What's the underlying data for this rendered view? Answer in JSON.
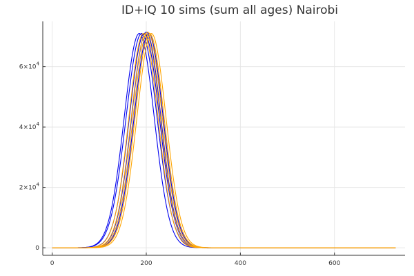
{
  "chart_data": {
    "type": "line",
    "title": "ID+IQ 10 sims (sum all ages) Nairobi",
    "xlabel": "",
    "ylabel": "",
    "xlim": [
      -20,
      750
    ],
    "ylim": [
      -2500,
      75000
    ],
    "grid": true,
    "legend": "none",
    "x_ticks": [
      {
        "value": 0,
        "label": "0"
      },
      {
        "value": 200,
        "label": "200"
      },
      {
        "value": 400,
        "label": "400"
      },
      {
        "value": 600,
        "label": "600"
      }
    ],
    "y_ticks": [
      {
        "value": 0,
        "base": "0",
        "exp": ""
      },
      {
        "value": 20000,
        "base": "2×10",
        "exp": "4"
      },
      {
        "value": 40000,
        "base": "4×10",
        "exp": "4"
      },
      {
        "value": 60000,
        "base": "6×10",
        "exp": "4"
      }
    ],
    "x_range": [
      0,
      730
    ],
    "series": [
      {
        "color": "#0000ee",
        "peak_x": 185,
        "peak_y": 71000,
        "width": 32
      },
      {
        "color": "#0000ee",
        "peak_x": 190,
        "peak_y": 71000,
        "width": 33
      },
      {
        "color": "#0000ee",
        "peak_x": 196,
        "peak_y": 71000,
        "width": 32
      },
      {
        "color": "#0000ee",
        "peak_x": 200,
        "peak_y": 71500,
        "width": 31
      },
      {
        "color": "#0000ee",
        "peak_x": 205,
        "peak_y": 71000,
        "width": 31
      },
      {
        "color": "#ffa500",
        "peak_x": 194,
        "peak_y": 71000,
        "width": 31
      },
      {
        "color": "#ffa500",
        "peak_x": 199,
        "peak_y": 71000,
        "width": 31
      },
      {
        "color": "#ffa500",
        "peak_x": 203,
        "peak_y": 71500,
        "width": 31
      },
      {
        "color": "#ffa500",
        "peak_x": 207,
        "peak_y": 71000,
        "width": 31
      },
      {
        "color": "#ffa500",
        "peak_x": 211,
        "peak_y": 71000,
        "width": 31
      }
    ]
  }
}
